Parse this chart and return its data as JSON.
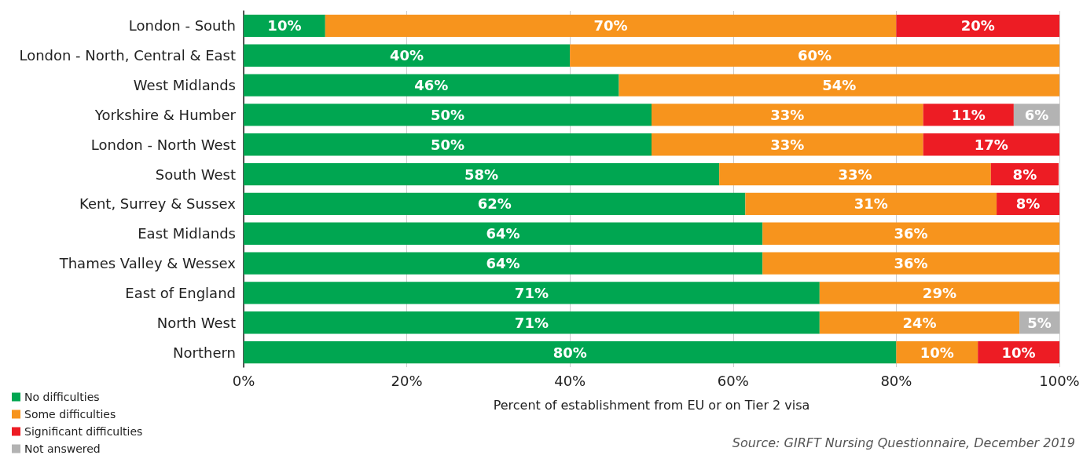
{
  "chart_data": {
    "type": "bar",
    "orientation": "horizontal",
    "stacked": true,
    "xlabel": "Percent of establishment from EU or on Tier 2 visa",
    "annotations": [
      "Source: GIRFT Nursing Questionnaire, December 2019"
    ],
    "categories": [
      "London - South",
      "London - North, Central & East",
      "West Midlands",
      "Yorkshire & Humber",
      "London - North West",
      "South West",
      "Kent, Surrey & Sussex",
      "East Midlands",
      "Thames Valley & Wessex",
      "East of England",
      "North West",
      "Northern"
    ],
    "series": [
      {
        "name": "No difficulties",
        "color": "#00a651",
        "values": [
          10,
          40,
          46,
          50,
          50,
          58.3,
          61.5,
          63.6,
          63.6,
          70.6,
          70.6,
          80
        ],
        "value_labels": [
          "10%",
          "40%",
          "46%",
          "50%",
          "50%",
          "58%",
          "62%",
          "64%",
          "64%",
          "71%",
          "71%",
          "80%"
        ]
      },
      {
        "name": "Some difficulties",
        "color": "#f7941d",
        "values": [
          70,
          60,
          54,
          33.3,
          33.3,
          33.3,
          30.8,
          36.4,
          36.4,
          29.4,
          24.5,
          10
        ],
        "value_labels": [
          "70%",
          "60%",
          "54%",
          "33%",
          "33%",
          "33%",
          "31%",
          "36%",
          "36%",
          "29%",
          "24%",
          "10%"
        ]
      },
      {
        "name": "Significant difficulties",
        "color": "#ed1c24",
        "values": [
          20,
          null,
          null,
          11.1,
          16.7,
          8.3,
          7.7,
          null,
          null,
          null,
          null,
          10
        ],
        "value_labels": [
          "20%",
          null,
          null,
          "11%",
          "17%",
          "8%",
          "8%",
          null,
          null,
          null,
          null,
          "10%"
        ]
      },
      {
        "name": "Not answered",
        "color": "#b3b3b3",
        "values": [
          null,
          null,
          null,
          5.6,
          null,
          null,
          null,
          null,
          null,
          null,
          4.9,
          null
        ],
        "value_labels": [
          null,
          null,
          null,
          "6%",
          null,
          null,
          null,
          null,
          null,
          null,
          "5%",
          null
        ]
      }
    ],
    "xlim": [
      0,
      100
    ],
    "xticks": [
      {
        "value": 0,
        "label": "0%"
      },
      {
        "value": 20,
        "label": "20%"
      },
      {
        "value": 40,
        "label": "40%"
      },
      {
        "value": 60,
        "label": "60%"
      },
      {
        "value": 80,
        "label": "80%"
      },
      {
        "value": 100,
        "label": "100%"
      }
    ],
    "grid": "x",
    "legend": "bottom left"
  }
}
